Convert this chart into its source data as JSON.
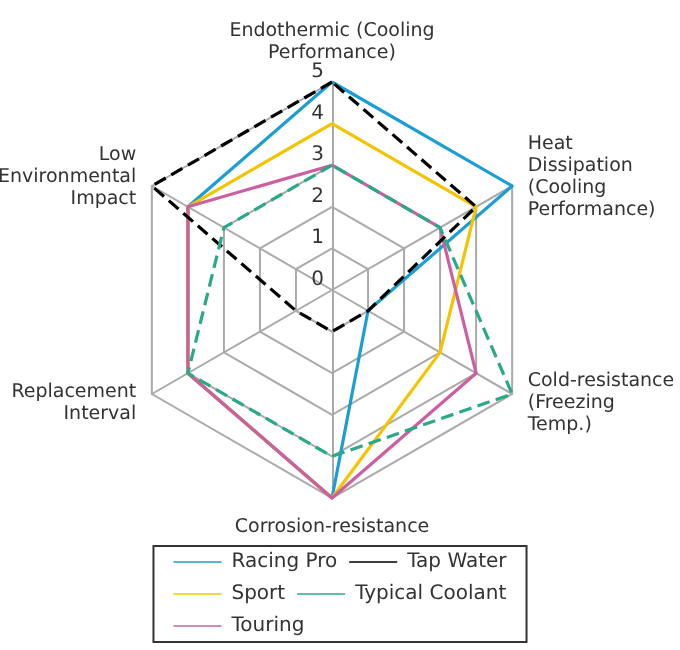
{
  "chart_data": {
    "type": "radar",
    "categories": [
      "Endothermic (Cooling Performance)",
      "Heat Dissipation (Cooling Performance)",
      "Cold-resistance (Freezing Temp.)",
      "Corrosion-resistance",
      "Replacement Interval",
      "Low Environmental Impact"
    ],
    "ylim": [
      0,
      5
    ],
    "yticks": [
      0,
      1,
      2,
      3,
      4,
      5
    ],
    "grid": true,
    "legend": "bottom",
    "marker": "none",
    "series": [
      {
        "name": "Racing Pro",
        "color": "#1a9ed4",
        "line_style": "solid",
        "values": [
          5,
          5,
          1,
          5,
          4,
          4
        ]
      },
      {
        "name": "Sport",
        "color": "#f5c400",
        "line_style": "solid",
        "values": [
          4,
          4,
          3,
          5,
          4,
          4
        ]
      },
      {
        "name": "Touring",
        "color": "#cc5fa0",
        "line_style": "solid",
        "values": [
          3,
          3,
          4,
          5,
          4,
          4
        ]
      },
      {
        "name": "Tap Water",
        "color": "#000000",
        "line_style": "dashed",
        "values": [
          5,
          4,
          1,
          1,
          1,
          5
        ]
      },
      {
        "name": "Typical Coolant",
        "color": "#2aa88a",
        "line_style": "dashed",
        "values": [
          3,
          3,
          5,
          4,
          4,
          3
        ]
      }
    ]
  }
}
